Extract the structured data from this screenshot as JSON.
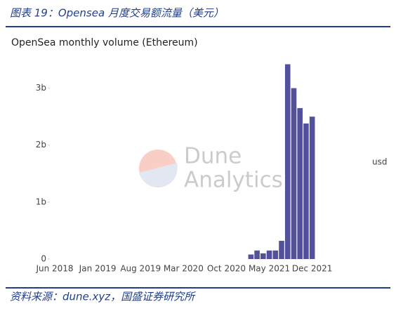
{
  "header": "图表 19：Opensea 月度交易额流量（美元）",
  "source": "资料来源：dune.xyz，国盛证券研究所",
  "watermark": [
    "Dune",
    "Analytics"
  ],
  "chart_data": {
    "type": "bar",
    "title": "OpenSea monthly volume (Ethereum)",
    "y_label": "usd",
    "categories": [
      "Jun 2018",
      null,
      null,
      null,
      null,
      null,
      null,
      "Jan 2019",
      null,
      null,
      null,
      null,
      null,
      null,
      "Aug 2019",
      null,
      null,
      null,
      null,
      null,
      null,
      "Mar 2020",
      null,
      null,
      null,
      null,
      null,
      null,
      "Oct 2020",
      null,
      null,
      null,
      null,
      null,
      null,
      "May 2021",
      null,
      null,
      null,
      null,
      null,
      null,
      "Dec 2021"
    ],
    "values": [
      0,
      0,
      0,
      0,
      0,
      0,
      0,
      0,
      0,
      0,
      0,
      0,
      0,
      0,
      0,
      0,
      0,
      0,
      0,
      0,
      0,
      0,
      0,
      0,
      0,
      0,
      0,
      0,
      0,
      0,
      0,
      0,
      80000000,
      150000000,
      100000000,
      150000000,
      150000000,
      320000000,
      3420000000,
      3000000000,
      2650000000,
      2380000000,
      2500000000
    ],
    "color": "#54519c",
    "ylim": [
      0,
      3500000000
    ],
    "yticks": [
      0,
      {
        "value": 1000000000,
        "label": "1b"
      },
      {
        "value": 2000000000,
        "label": "2b"
      },
      {
        "value": 3000000000,
        "label": "3b"
      }
    ]
  }
}
